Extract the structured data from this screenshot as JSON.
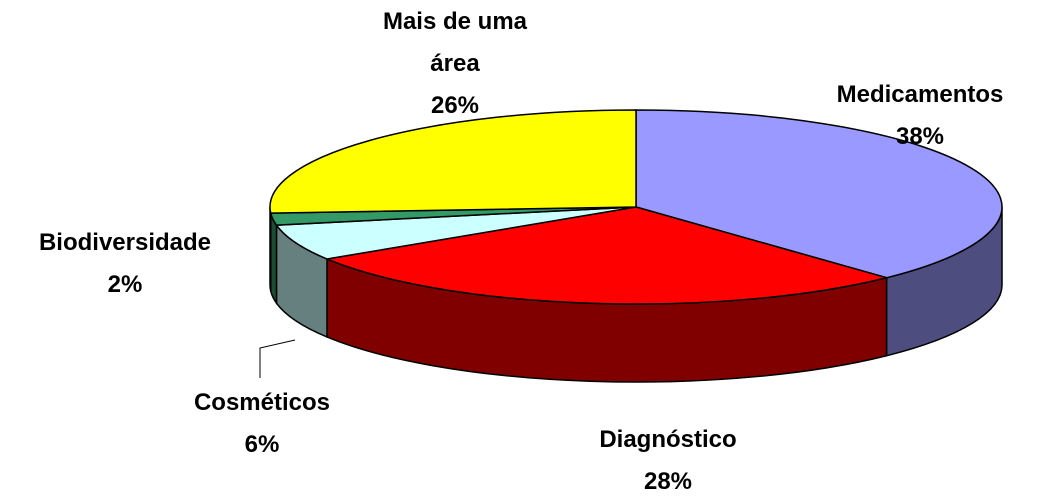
{
  "chart_data": {
    "type": "pie",
    "categories": [
      "Medicamentos",
      "Diagnóstico",
      "Cosméticos",
      "Biodiversidade",
      "Mais de uma área"
    ],
    "values": [
      38,
      28,
      6,
      2,
      26
    ],
    "value_labels": [
      "38%",
      "28%",
      "6%",
      "2%",
      "26%"
    ],
    "colors": [
      "#9999ff",
      "#ff0000",
      "#ccffff",
      "#339966",
      "#ffff00"
    ]
  }
}
